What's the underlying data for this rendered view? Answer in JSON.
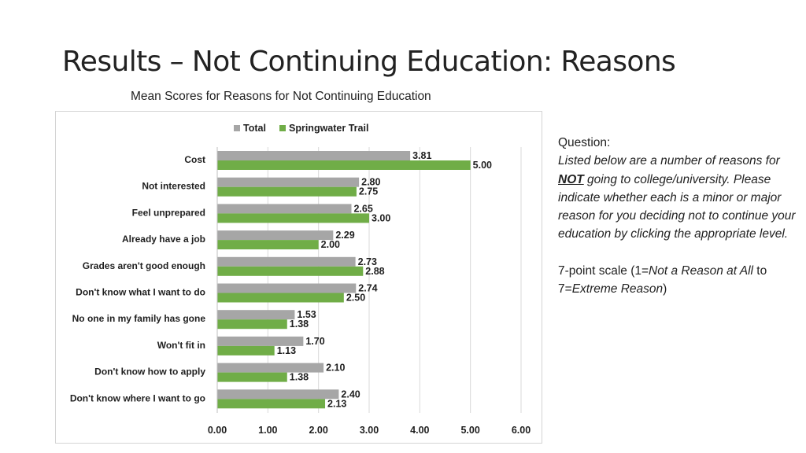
{
  "slide": {
    "title": "Results – Not Continuing Education: Reasons",
    "chart_caption": "Mean Scores for Reasons for Not Continuing Education"
  },
  "question": {
    "label": "Question:",
    "text_before": "Listed below are a number of reasons for ",
    "emphasis": "NOT",
    "text_after": " going to college/university. Please indicate whether each is a minor or major reason for you deciding not to continue your education by clicking the appropriate level.",
    "scale_prefix": "7-point scale (1=",
    "scale_min_label": "Not a Reason at All",
    "scale_mid": " to 7=",
    "scale_max_label": "Extreme Reason",
    "scale_suffix": ")"
  },
  "colors": {
    "total": "#a6a6a6",
    "springwater": "#70ad47",
    "gridline": "#d9d9d9",
    "text": "#1f1f1f"
  },
  "chart_data": {
    "type": "bar",
    "orientation": "horizontal",
    "categories": [
      "Cost",
      "Not interested",
      "Feel unprepared",
      "Already have a job",
      "Grades aren't good enough",
      "Don't know what I want to do",
      "No one in my family has gone",
      "Won't fit in",
      "Don't know how to apply",
      "Don't know where I want to go"
    ],
    "series": [
      {
        "name": "Total",
        "values": [
          3.81,
          2.8,
          2.65,
          2.29,
          2.73,
          2.74,
          1.53,
          1.7,
          2.1,
          2.4
        ],
        "labels": [
          "3.81",
          "2.80",
          "2.65",
          "2.29",
          "2.73",
          "2.74",
          "1.53",
          "1.70",
          "2.10",
          "2.40"
        ]
      },
      {
        "name": "Springwater Trail",
        "values": [
          5.0,
          2.75,
          3.0,
          2.0,
          2.88,
          2.5,
          1.38,
          1.13,
          1.38,
          2.13
        ],
        "labels": [
          "5.00",
          "2.75",
          "3.00",
          "2.00",
          "2.88",
          "2.50",
          "1.38",
          "1.13",
          "1.38",
          "2.13"
        ]
      }
    ],
    "xlim": [
      0,
      6
    ],
    "xticks": [
      0,
      1,
      2,
      3,
      4,
      5,
      6
    ],
    "xtick_labels": [
      "0.00",
      "1.00",
      "2.00",
      "3.00",
      "4.00",
      "5.00",
      "6.00"
    ],
    "legend_position": "top-center",
    "grid": "vertical",
    "title": "Mean Scores for Reasons for Not Continuing Education"
  }
}
